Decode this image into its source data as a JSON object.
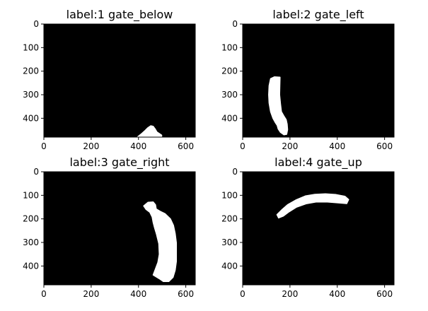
{
  "chart_data": [
    {
      "type": "heatmap",
      "title": "label:1 gate_below",
      "xlim": [
        0,
        640
      ],
      "ylim": [
        480,
        0
      ],
      "xticks": [
        0,
        200,
        400,
        600
      ],
      "yticks": [
        0,
        100,
        200,
        300,
        400
      ],
      "background_color": "#000000",
      "mask_color": "#ffffff",
      "mask_polygons": [
        [
          [
            395,
            480
          ],
          [
            410,
            468
          ],
          [
            428,
            452
          ],
          [
            440,
            440
          ],
          [
            452,
            432
          ],
          [
            462,
            434
          ],
          [
            470,
            445
          ],
          [
            478,
            458
          ],
          [
            488,
            465
          ],
          [
            498,
            472
          ],
          [
            498,
            480
          ]
        ]
      ]
    },
    {
      "type": "heatmap",
      "title": "label:2 gate_left",
      "xlim": [
        0,
        640
      ],
      "ylim": [
        480,
        0
      ],
      "xticks": [
        0,
        200,
        400,
        600
      ],
      "yticks": [
        0,
        100,
        200,
        300,
        400
      ],
      "background_color": "#000000",
      "mask_color": "#ffffff",
      "mask_polygons": [
        [
          [
            118,
            232
          ],
          [
            135,
            224
          ],
          [
            158,
            226
          ],
          [
            157,
            262
          ],
          [
            156,
            300
          ],
          [
            160,
            340
          ],
          [
            164,
            372
          ],
          [
            174,
            390
          ],
          [
            184,
            406
          ],
          [
            188,
            425
          ],
          [
            190,
            448
          ],
          [
            186,
            468
          ],
          [
            175,
            470
          ],
          [
            160,
            460
          ],
          [
            150,
            445
          ],
          [
            146,
            430
          ],
          [
            138,
            418
          ],
          [
            128,
            400
          ],
          [
            118,
            372
          ],
          [
            112,
            335
          ],
          [
            110,
            300
          ],
          [
            112,
            262
          ]
        ]
      ]
    },
    {
      "type": "heatmap",
      "title": "label:3 gate_right",
      "xlim": [
        0,
        640
      ],
      "ylim": [
        480,
        0
      ],
      "xticks": [
        0,
        200,
        400,
        600
      ],
      "yticks": [
        0,
        100,
        200,
        300,
        400
      ],
      "background_color": "#000000",
      "mask_color": "#ffffff",
      "mask_polygons": [
        [
          [
            422,
            145
          ],
          [
            440,
            130
          ],
          [
            462,
            128
          ],
          [
            472,
            140
          ],
          [
            475,
            158
          ],
          [
            492,
            168
          ],
          [
            512,
            178
          ],
          [
            535,
            200
          ],
          [
            548,
            228
          ],
          [
            555,
            262
          ],
          [
            560,
            302
          ],
          [
            560,
            342
          ],
          [
            560,
            380
          ],
          [
            555,
            418
          ],
          [
            546,
            448
          ],
          [
            528,
            466
          ],
          [
            505,
            466
          ],
          [
            488,
            454
          ],
          [
            462,
            438
          ],
          [
            472,
            412
          ],
          [
            482,
            385
          ],
          [
            488,
            350
          ],
          [
            486,
            305
          ],
          [
            476,
            265
          ],
          [
            468,
            238
          ],
          [
            462,
            215
          ],
          [
            458,
            192
          ],
          [
            448,
            172
          ],
          [
            432,
            160
          ]
        ]
      ]
    },
    {
      "type": "heatmap",
      "title": "label:4 gate_up",
      "xlim": [
        0,
        640
      ],
      "ylim": [
        480,
        0
      ],
      "xticks": [
        0,
        200,
        400,
        600
      ],
      "yticks": [
        0,
        100,
        200,
        300,
        400
      ],
      "background_color": "#000000",
      "mask_color": "#ffffff",
      "mask_polygons": [
        [
          [
            145,
            182
          ],
          [
            165,
            162
          ],
          [
            190,
            140
          ],
          [
            225,
            120
          ],
          [
            265,
            103
          ],
          [
            305,
            96
          ],
          [
            350,
            94
          ],
          [
            395,
            97
          ],
          [
            432,
            104
          ],
          [
            448,
            118
          ],
          [
            440,
            135
          ],
          [
            405,
            132
          ],
          [
            358,
            128
          ],
          [
            310,
            128
          ],
          [
            268,
            136
          ],
          [
            228,
            150
          ],
          [
            196,
            170
          ],
          [
            172,
            188
          ],
          [
            152,
            196
          ]
        ]
      ]
    }
  ]
}
